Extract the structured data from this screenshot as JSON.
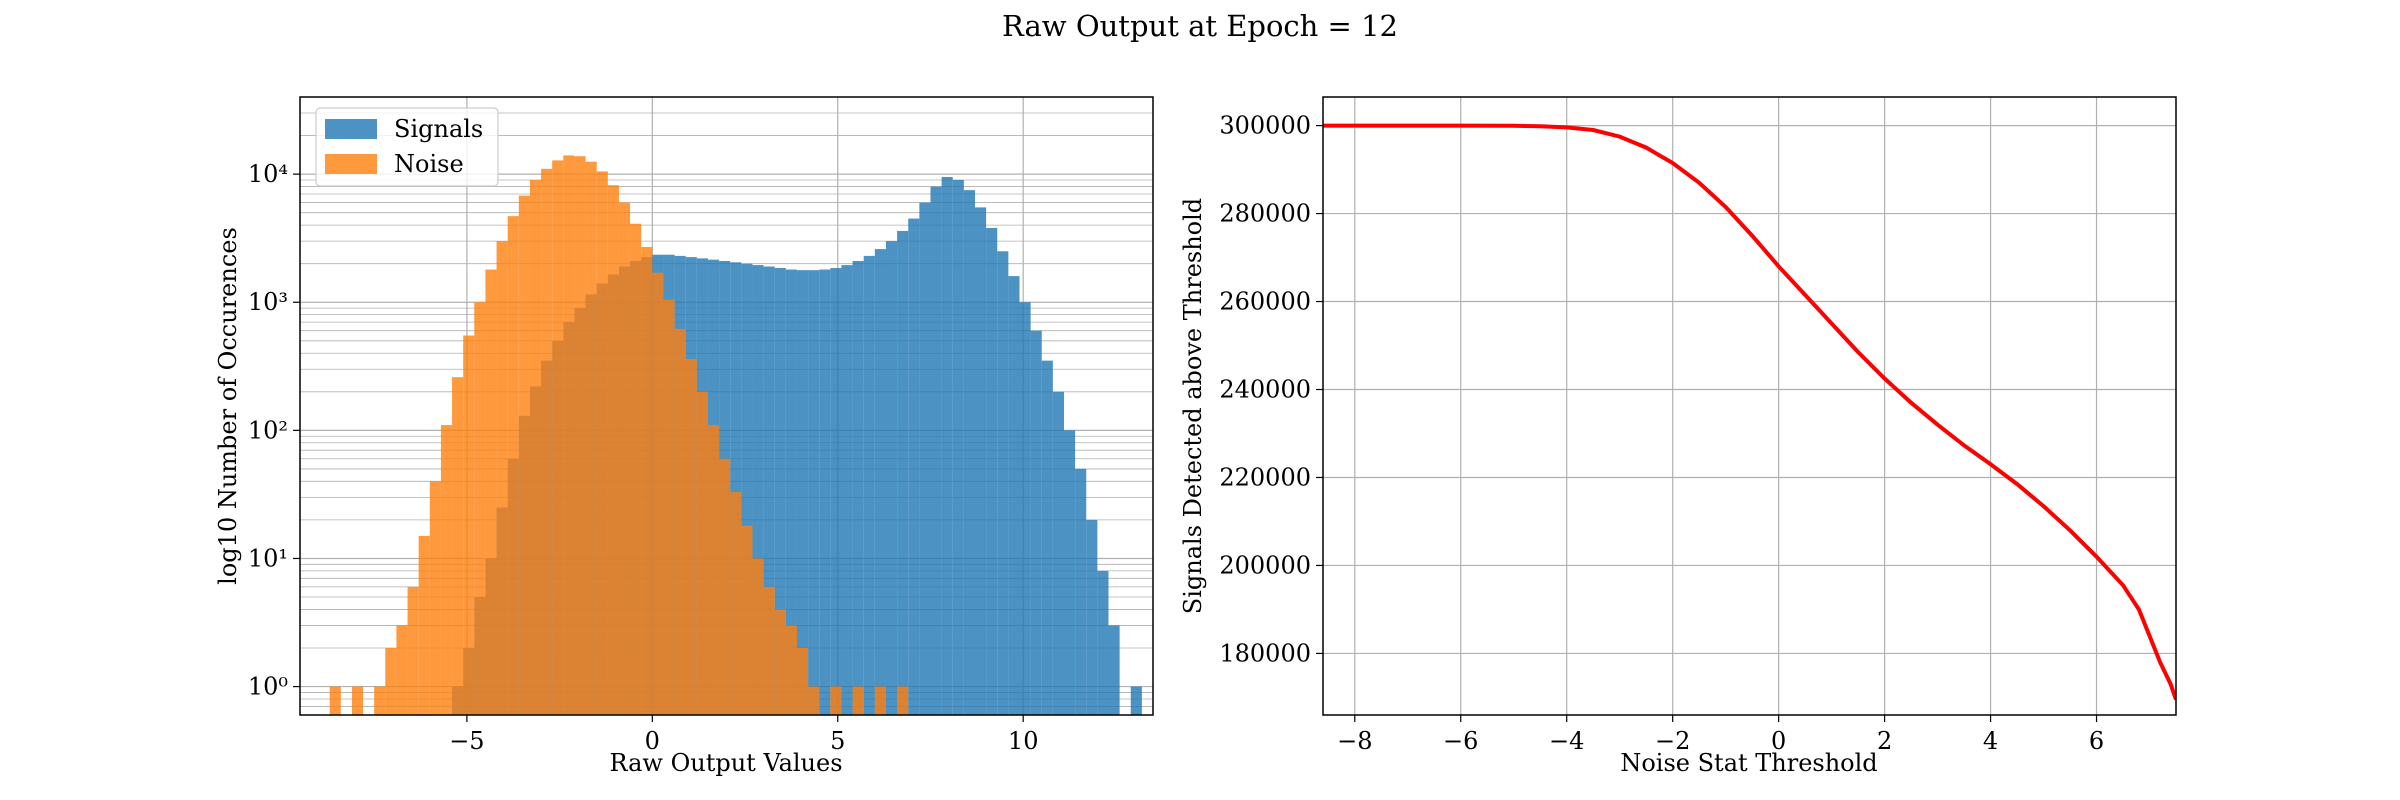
{
  "figure": {
    "suptitle": "Raw Output at Epoch = 12"
  },
  "colors": {
    "signals": "#1f77b4",
    "noise": "#ff7f0e",
    "curve": "#ff0000",
    "grid": "#b0b0b0",
    "axes": "#000000"
  },
  "chart_data": [
    {
      "type": "histogram",
      "title": "",
      "xlabel": "Raw Output Values",
      "ylabel": "log10 Number of Occurences",
      "yscale": "log",
      "xlim": [
        -9.5,
        13.5
      ],
      "ylim": [
        0.6,
        40000
      ],
      "xticks": [
        -5,
        0,
        5,
        10
      ],
      "xtick_labels": [
        "−5",
        "0",
        "5",
        "10"
      ],
      "yticks": [
        1,
        10,
        100,
        1000,
        10000
      ],
      "ytick_labels": [
        "10⁰",
        "10¹",
        "10²",
        "10³",
        "10⁴"
      ],
      "grid": true,
      "legend": {
        "placement": "top-left"
      },
      "series": [
        {
          "name": "Signals",
          "color": "#1f77b4",
          "alpha": 0.8,
          "bins": [
            [
              -5.4,
              1
            ],
            [
              -5.1,
              2
            ],
            [
              -4.8,
              5
            ],
            [
              -4.5,
              10
            ],
            [
              -4.2,
              25
            ],
            [
              -3.9,
              60
            ],
            [
              -3.6,
              130
            ],
            [
              -3.3,
              220
            ],
            [
              -3.0,
              350
            ],
            [
              -2.7,
              500
            ],
            [
              -2.4,
              700
            ],
            [
              -2.1,
              900
            ],
            [
              -1.8,
              1150
            ],
            [
              -1.5,
              1400
            ],
            [
              -1.2,
              1650
            ],
            [
              -0.9,
              1900
            ],
            [
              -0.6,
              2100
            ],
            [
              -0.3,
              2250
            ],
            [
              0.0,
              2350
            ],
            [
              0.3,
              2350
            ],
            [
              0.6,
              2300
            ],
            [
              0.9,
              2250
            ],
            [
              1.2,
              2200
            ],
            [
              1.5,
              2150
            ],
            [
              1.8,
              2100
            ],
            [
              2.1,
              2050
            ],
            [
              2.4,
              2000
            ],
            [
              2.7,
              1950
            ],
            [
              3.0,
              1900
            ],
            [
              3.3,
              1850
            ],
            [
              3.6,
              1800
            ],
            [
              3.9,
              1780
            ],
            [
              4.2,
              1780
            ],
            [
              4.5,
              1800
            ],
            [
              4.8,
              1850
            ],
            [
              5.1,
              1950
            ],
            [
              5.4,
              2100
            ],
            [
              5.7,
              2300
            ],
            [
              6.0,
              2600
            ],
            [
              6.3,
              3000
            ],
            [
              6.6,
              3600
            ],
            [
              6.9,
              4500
            ],
            [
              7.2,
              6000
            ],
            [
              7.5,
              8000
            ],
            [
              7.8,
              9500
            ],
            [
              8.1,
              9000
            ],
            [
              8.4,
              7500
            ],
            [
              8.7,
              5500
            ],
            [
              9.0,
              3800
            ],
            [
              9.3,
              2500
            ],
            [
              9.6,
              1600
            ],
            [
              9.9,
              1000
            ],
            [
              10.2,
              600
            ],
            [
              10.5,
              350
            ],
            [
              10.8,
              200
            ],
            [
              11.1,
              100
            ],
            [
              11.4,
              50
            ],
            [
              11.7,
              20
            ],
            [
              12.0,
              8
            ],
            [
              12.3,
              3
            ],
            [
              12.9,
              1
            ]
          ]
        },
        {
          "name": "Noise",
          "color": "#ff7f0e",
          "alpha": 0.8,
          "bins": [
            [
              -8.7,
              1
            ],
            [
              -8.1,
              1
            ],
            [
              -7.5,
              1
            ],
            [
              -7.2,
              2
            ],
            [
              -6.9,
              3
            ],
            [
              -6.6,
              6
            ],
            [
              -6.3,
              15
            ],
            [
              -6.0,
              40
            ],
            [
              -5.7,
              110
            ],
            [
              -5.4,
              260
            ],
            [
              -5.1,
              550
            ],
            [
              -4.8,
              1000
            ],
            [
              -4.5,
              1800
            ],
            [
              -4.2,
              3000
            ],
            [
              -3.9,
              4700
            ],
            [
              -3.6,
              6800
            ],
            [
              -3.3,
              9000
            ],
            [
              -3.0,
              11000
            ],
            [
              -2.7,
              12800
            ],
            [
              -2.4,
              14000
            ],
            [
              -2.1,
              13800
            ],
            [
              -1.8,
              12500
            ],
            [
              -1.5,
              10500
            ],
            [
              -1.2,
              8200
            ],
            [
              -0.9,
              6000
            ],
            [
              -0.6,
              4100
            ],
            [
              -0.3,
              2700
            ],
            [
              0.0,
              1700
            ],
            [
              0.3,
              1050
            ],
            [
              0.6,
              620
            ],
            [
              0.9,
              360
            ],
            [
              1.2,
              200
            ],
            [
              1.5,
              110
            ],
            [
              1.8,
              60
            ],
            [
              2.1,
              33
            ],
            [
              2.4,
              18
            ],
            [
              2.7,
              10
            ],
            [
              3.0,
              6
            ],
            [
              3.3,
              4
            ],
            [
              3.6,
              3
            ],
            [
              3.9,
              2
            ],
            [
              4.2,
              1
            ],
            [
              4.8,
              1
            ],
            [
              5.4,
              1
            ],
            [
              6.0,
              1
            ],
            [
              6.6,
              1
            ]
          ]
        }
      ]
    },
    {
      "type": "line",
      "title": "",
      "xlabel": "Noise Stat Threshold",
      "ylabel": "Signals Detected above Threshold",
      "xlim": [
        -8.6,
        7.5
      ],
      "ylim": [
        166000,
        306500
      ],
      "xticks": [
        -8,
        -6,
        -4,
        -2,
        0,
        2,
        4,
        6
      ],
      "xtick_labels": [
        "−8",
        "−6",
        "−4",
        "−2",
        "0",
        "2",
        "4",
        "6"
      ],
      "yticks": [
        180000,
        200000,
        220000,
        240000,
        260000,
        280000,
        300000
      ],
      "ytick_labels": [
        "180000",
        "200000",
        "220000",
        "240000",
        "260000",
        "280000",
        "300000"
      ],
      "grid": true,
      "series": [
        {
          "color": "#ff0000",
          "x": [
            -8.6,
            -6,
            -5,
            -4.5,
            -4,
            -3.5,
            -3,
            -2.5,
            -2,
            -1.5,
            -1,
            -0.5,
            0,
            0.5,
            1,
            1.5,
            2,
            2.5,
            3,
            3.5,
            4,
            4.5,
            5,
            5.5,
            6,
            6.5,
            6.8,
            7.0,
            7.2,
            7.4,
            7.5
          ],
          "y": [
            300000,
            300000,
            299950,
            299850,
            299600,
            299000,
            297500,
            295000,
            291500,
            287000,
            281500,
            275000,
            268000,
            261500,
            255000,
            248500,
            242500,
            237000,
            232000,
            227300,
            223000,
            218500,
            213500,
            208000,
            202000,
            195500,
            190000,
            184000,
            178000,
            173000,
            169500
          ]
        }
      ]
    }
  ]
}
